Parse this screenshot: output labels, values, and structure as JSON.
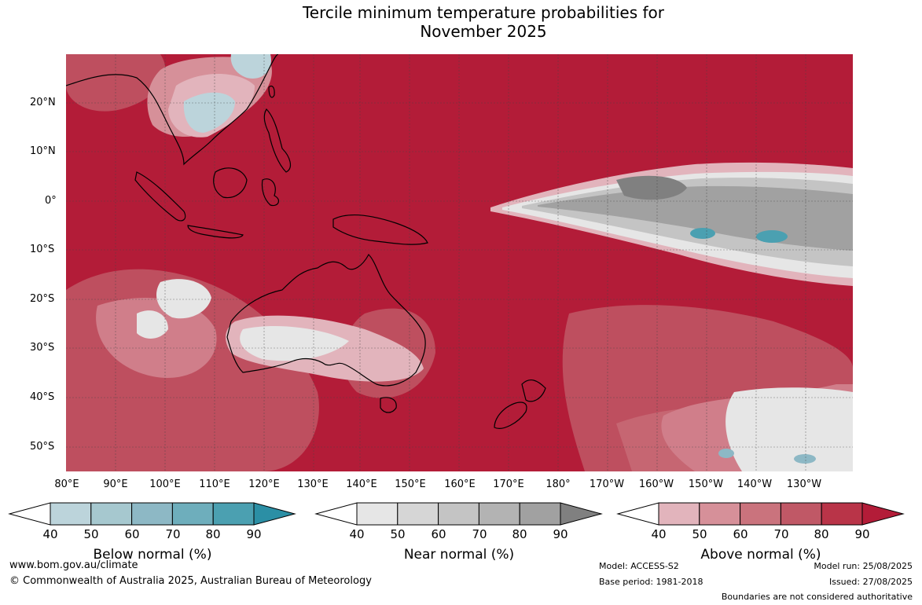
{
  "title_line1": "Tercile minimum temperature probabilities for",
  "title_line2": "November 2025",
  "lat_labels": [
    "20°N",
    "10°N",
    "0°",
    "10°S",
    "20°S",
    "30°S",
    "40°S",
    "50°S"
  ],
  "lon_labels": [
    "80°E",
    "90°E",
    "100°E",
    "110°E",
    "120°E",
    "130°E",
    "140°E",
    "150°E",
    "160°E",
    "170°E",
    "180°",
    "170°W",
    "160°W",
    "150°W",
    "140°W",
    "130°W"
  ],
  "colorbars": {
    "below": {
      "label": "Below normal (%)",
      "ticks": [
        "40",
        "50",
        "60",
        "70",
        "80",
        "90"
      ],
      "colors": [
        "#bcd4db",
        "#a6c8cf",
        "#8db8c5",
        "#6eaebc",
        "#4ba0b1",
        "#2b8fa5"
      ]
    },
    "near": {
      "label": "Near normal (%)",
      "ticks": [
        "40",
        "50",
        "60",
        "70",
        "80",
        "90"
      ],
      "colors": [
        "#e6e6e6",
        "#d6d6d6",
        "#c4c4c4",
        "#b3b3b3",
        "#a1a1a1",
        "#808080"
      ]
    },
    "above": {
      "label": "Above normal (%)",
      "ticks": [
        "40",
        "50",
        "60",
        "70",
        "80",
        "90"
      ],
      "colors": [
        "#e2b4bc",
        "#d69099",
        "#ca737d",
        "#c05866",
        "#b93448",
        "#b31c38"
      ]
    }
  },
  "footer": {
    "website": "www.bom.gov.au/climate",
    "copyright": "© Commonwealth of Australia 2025, Australian Bureau of Meteorology",
    "model": "Model: ACCESS-S2",
    "base_period": "Base period: 1981-2018",
    "model_run": "Model run: 25/08/2025",
    "issued": "Issued: 27/08/2025",
    "disclaimer": "Boundaries are not considered authoritative"
  }
}
